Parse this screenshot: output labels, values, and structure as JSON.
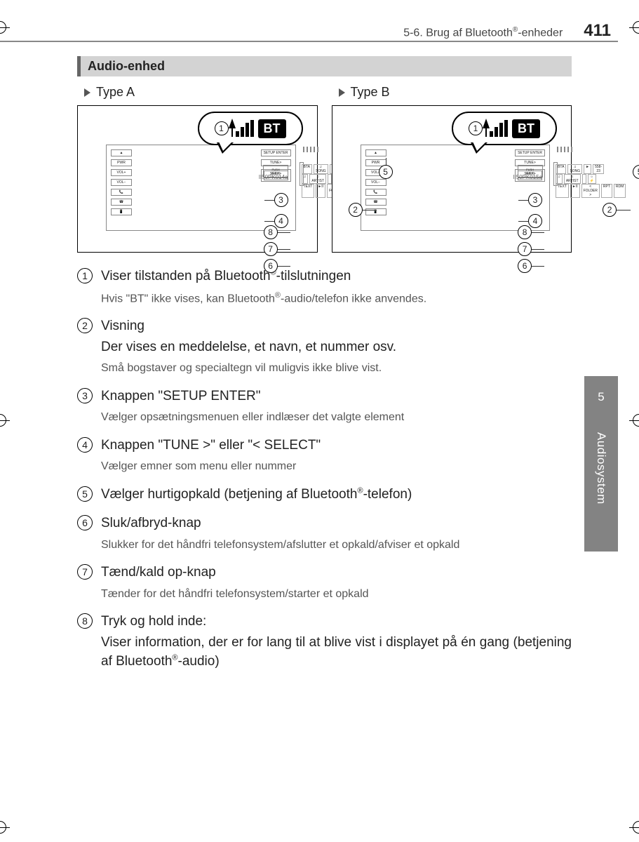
{
  "header": {
    "section": "5-6. Brug af Bluetooth",
    "section_suffix": "-enheder",
    "page": "411"
  },
  "section_title": "Audio-enhed",
  "types": {
    "a_label": "Type A",
    "b_label": "Type B",
    "a_ref": "II50PK014a",
    "b_ref": "II50PK015a",
    "bt_text": "BT"
  },
  "sidebar": {
    "chapter": "5",
    "label": "Audiosystem"
  },
  "items": [
    {
      "num": "1",
      "title_pre": "Viser tilstanden på Bluetooth",
      "title_post": "-tilslutningen",
      "note_pre": "Hvis \"BT\" ikke vises, kan Bluetooth",
      "note_post": "-audio/telefon ikke anvendes."
    },
    {
      "num": "2",
      "title": "Visning",
      "desc": "Der vises en meddelelse, et navn, et nummer osv.",
      "note": "Små bogstaver og specialtegn vil muligvis ikke blive vist."
    },
    {
      "num": "3",
      "title": "Knappen \"SETUP ENTER\"",
      "note": "Vælger opsætningsmenuen eller indlæser det valgte element"
    },
    {
      "num": "4",
      "title": "Knappen \"TUNE >\" eller \"< SELECT\"",
      "note": "Vælger emner som menu eller nummer"
    },
    {
      "num": "5",
      "title_pre": "Vælger hurtigopkald (betjening af Bluetooth",
      "title_post": "-telefon)"
    },
    {
      "num": "6",
      "title": "Sluk/afbryd-knap",
      "note": "Slukker for det håndfri telefonsystem/afslutter et opkald/afviser et opkald"
    },
    {
      "num": "7",
      "title": "Tænd/kald op-knap",
      "note": "Tænder for det håndfri telefonsystem/starter et opkald"
    },
    {
      "num": "8",
      "title": "Tryk og hold inde:",
      "desc_pre": "Viser information, der er for lang til at blive vist i displayet på én gang (betjening af Bluetooth",
      "desc_post": "-audio)"
    }
  ],
  "diagram_labels": {
    "left_btns": [
      "▲",
      "PWR",
      "VOL+",
      "VOL−",
      "📞",
      "☎",
      "📱"
    ],
    "right_btns": [
      "SETUP ENTER",
      "TUNE>",
      "<SELECT",
      "SEEK>",
      "<TRACK"
    ],
    "screen_row1": [
      "BTA",
      "♫ SONG",
      "►",
      "558-23"
    ],
    "screen_row2": [
      "♫",
      "♫ ARTIST",
      "",
      "☼ ⚡"
    ],
    "screen_row3": [
      "TEXT",
      "►II",
      "< FOLDER >",
      "RPT",
      "RDM"
    ],
    "push": "PUSH",
    "aux": "AUX ⟲"
  }
}
